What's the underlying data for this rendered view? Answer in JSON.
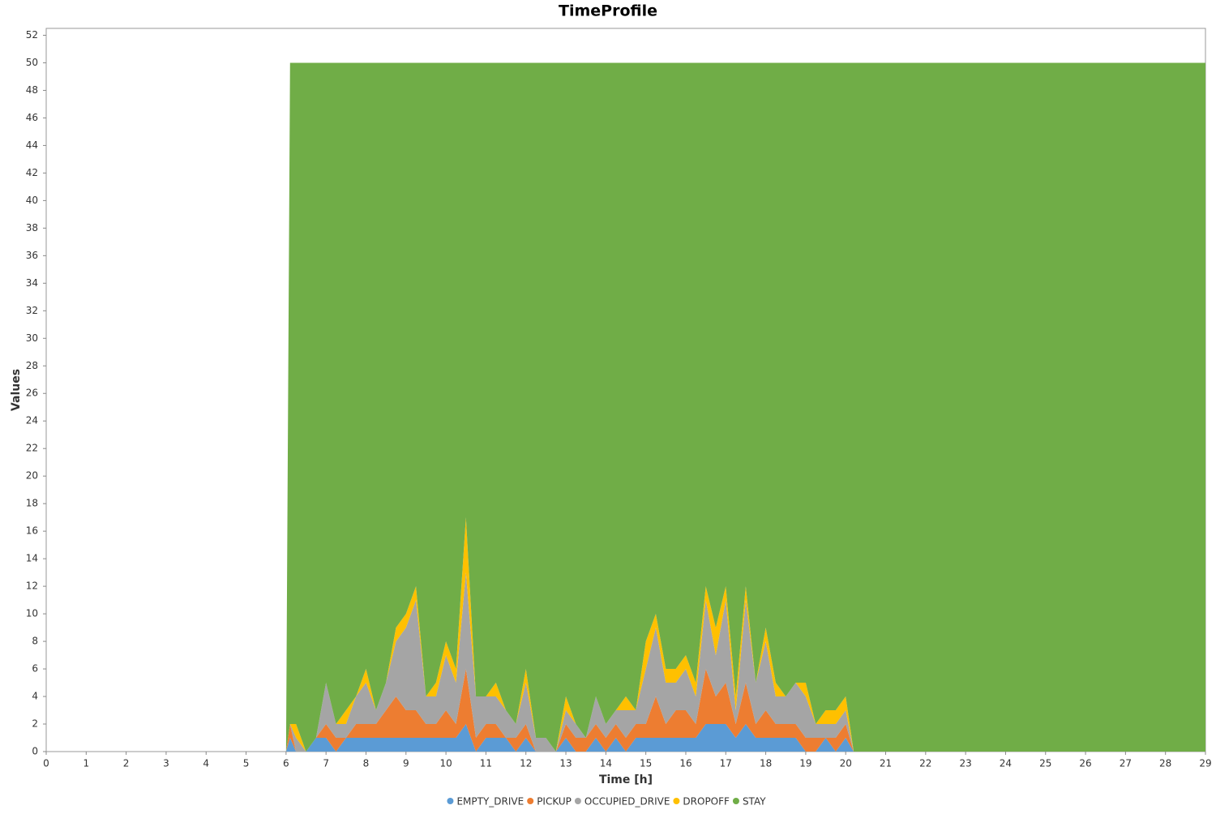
{
  "chart_data": {
    "type": "stacked_area",
    "title": "TimeProfile",
    "x_label": "Time [h]",
    "y_label": "Values",
    "x": [
      0,
      6,
      6.1,
      6.25,
      6.5,
      6.75,
      7,
      7.25,
      7.5,
      7.75,
      8,
      8.25,
      8.5,
      8.75,
      9,
      9.25,
      9.5,
      9.75,
      10,
      10.25,
      10.5,
      10.75,
      11,
      11.25,
      11.5,
      11.75,
      12,
      12.25,
      12.5,
      12.75,
      13,
      13.25,
      13.5,
      13.75,
      14,
      14.25,
      14.5,
      14.75,
      15,
      15.25,
      15.5,
      15.75,
      16,
      16.25,
      16.5,
      16.75,
      17,
      17.25,
      17.5,
      17.75,
      18,
      18.25,
      18.5,
      18.75,
      19,
      19.25,
      19.5,
      19.75,
      20,
      20.2,
      29
    ],
    "series": [
      {
        "name": "EMPTY_DRIVE",
        "color": "#5b9bd5",
        "values": [
          0,
          0,
          1,
          0,
          0,
          1,
          1,
          0,
          1,
          1,
          1,
          1,
          1,
          1,
          1,
          1,
          1,
          1,
          1,
          1,
          2,
          0,
          1,
          1,
          1,
          0,
          1,
          0,
          0,
          0,
          1,
          0,
          0,
          1,
          0,
          1,
          0,
          1,
          1,
          1,
          1,
          1,
          1,
          1,
          2,
          2,
          2,
          1,
          2,
          1,
          1,
          1,
          1,
          1,
          0,
          0,
          1,
          0,
          1,
          0,
          0
        ]
      },
      {
        "name": "PICKUP",
        "color": "#ed7d31",
        "values": [
          0,
          0,
          1,
          0,
          0,
          0,
          1,
          1,
          0,
          1,
          1,
          1,
          2,
          3,
          2,
          2,
          1,
          1,
          2,
          1,
          4,
          1,
          1,
          1,
          0,
          1,
          1,
          0,
          0,
          0,
          1,
          1,
          1,
          1,
          1,
          1,
          1,
          1,
          1,
          3,
          1,
          2,
          2,
          1,
          4,
          2,
          3,
          1,
          3,
          1,
          2,
          1,
          1,
          1,
          1,
          1,
          0,
          1,
          1,
          0,
          0
        ]
      },
      {
        "name": "OCCUPIED_DRIVE",
        "color": "#a5a5a5",
        "values": [
          0,
          0,
          0,
          1,
          0,
          0,
          3,
          1,
          1,
          2,
          3,
          1,
          2,
          4,
          6,
          8,
          2,
          2,
          4,
          3,
          7,
          3,
          2,
          2,
          2,
          1,
          3,
          1,
          1,
          0,
          1,
          1,
          0,
          2,
          1,
          1,
          2,
          1,
          4,
          5,
          3,
          2,
          3,
          2,
          5,
          3,
          6,
          1,
          6,
          3,
          5,
          2,
          2,
          3,
          3,
          1,
          1,
          1,
          1,
          0,
          0
        ]
      },
      {
        "name": "DROPOFF",
        "color": "#ffc000",
        "values": [
          0,
          0,
          0,
          1,
          0,
          0,
          0,
          0,
          1,
          0,
          1,
          0,
          0,
          1,
          1,
          1,
          0,
          1,
          1,
          1,
          4,
          0,
          0,
          1,
          0,
          0,
          1,
          0,
          0,
          0,
          1,
          0,
          0,
          0,
          0,
          0,
          1,
          0,
          2,
          1,
          1,
          1,
          1,
          1,
          1,
          2,
          1,
          1,
          1,
          0,
          1,
          1,
          0,
          0,
          1,
          0,
          1,
          1,
          1,
          0,
          0
        ]
      },
      {
        "name": "STAY",
        "color": "#70ad47",
        "values": [
          0,
          0,
          48,
          48,
          50,
          49,
          45,
          48,
          47,
          46,
          44,
          47,
          45,
          41,
          40,
          38,
          46,
          45,
          42,
          44,
          33,
          46,
          46,
          45,
          47,
          48,
          44,
          49,
          49,
          50,
          46,
          48,
          49,
          46,
          48,
          47,
          46,
          47,
          42,
          40,
          44,
          44,
          43,
          45,
          38,
          41,
          38,
          46,
          38,
          45,
          41,
          45,
          46,
          45,
          45,
          48,
          47,
          47,
          46,
          50,
          50
        ]
      }
    ],
    "xlim": [
      0,
      29
    ],
    "ylim": [
      0,
      52.5
    ],
    "xticks": [
      0,
      1,
      2,
      3,
      4,
      5,
      6,
      7,
      8,
      9,
      10,
      11,
      12,
      13,
      14,
      15,
      16,
      17,
      18,
      19,
      20,
      21,
      22,
      23,
      24,
      25,
      26,
      27,
      28,
      29
    ],
    "yticks": [
      0,
      2,
      4,
      6,
      8,
      10,
      12,
      14,
      16,
      18,
      20,
      22,
      24,
      26,
      28,
      30,
      32,
      34,
      36,
      38,
      40,
      42,
      44,
      46,
      48,
      50,
      52
    ],
    "grid": false,
    "legend": "bottom"
  }
}
